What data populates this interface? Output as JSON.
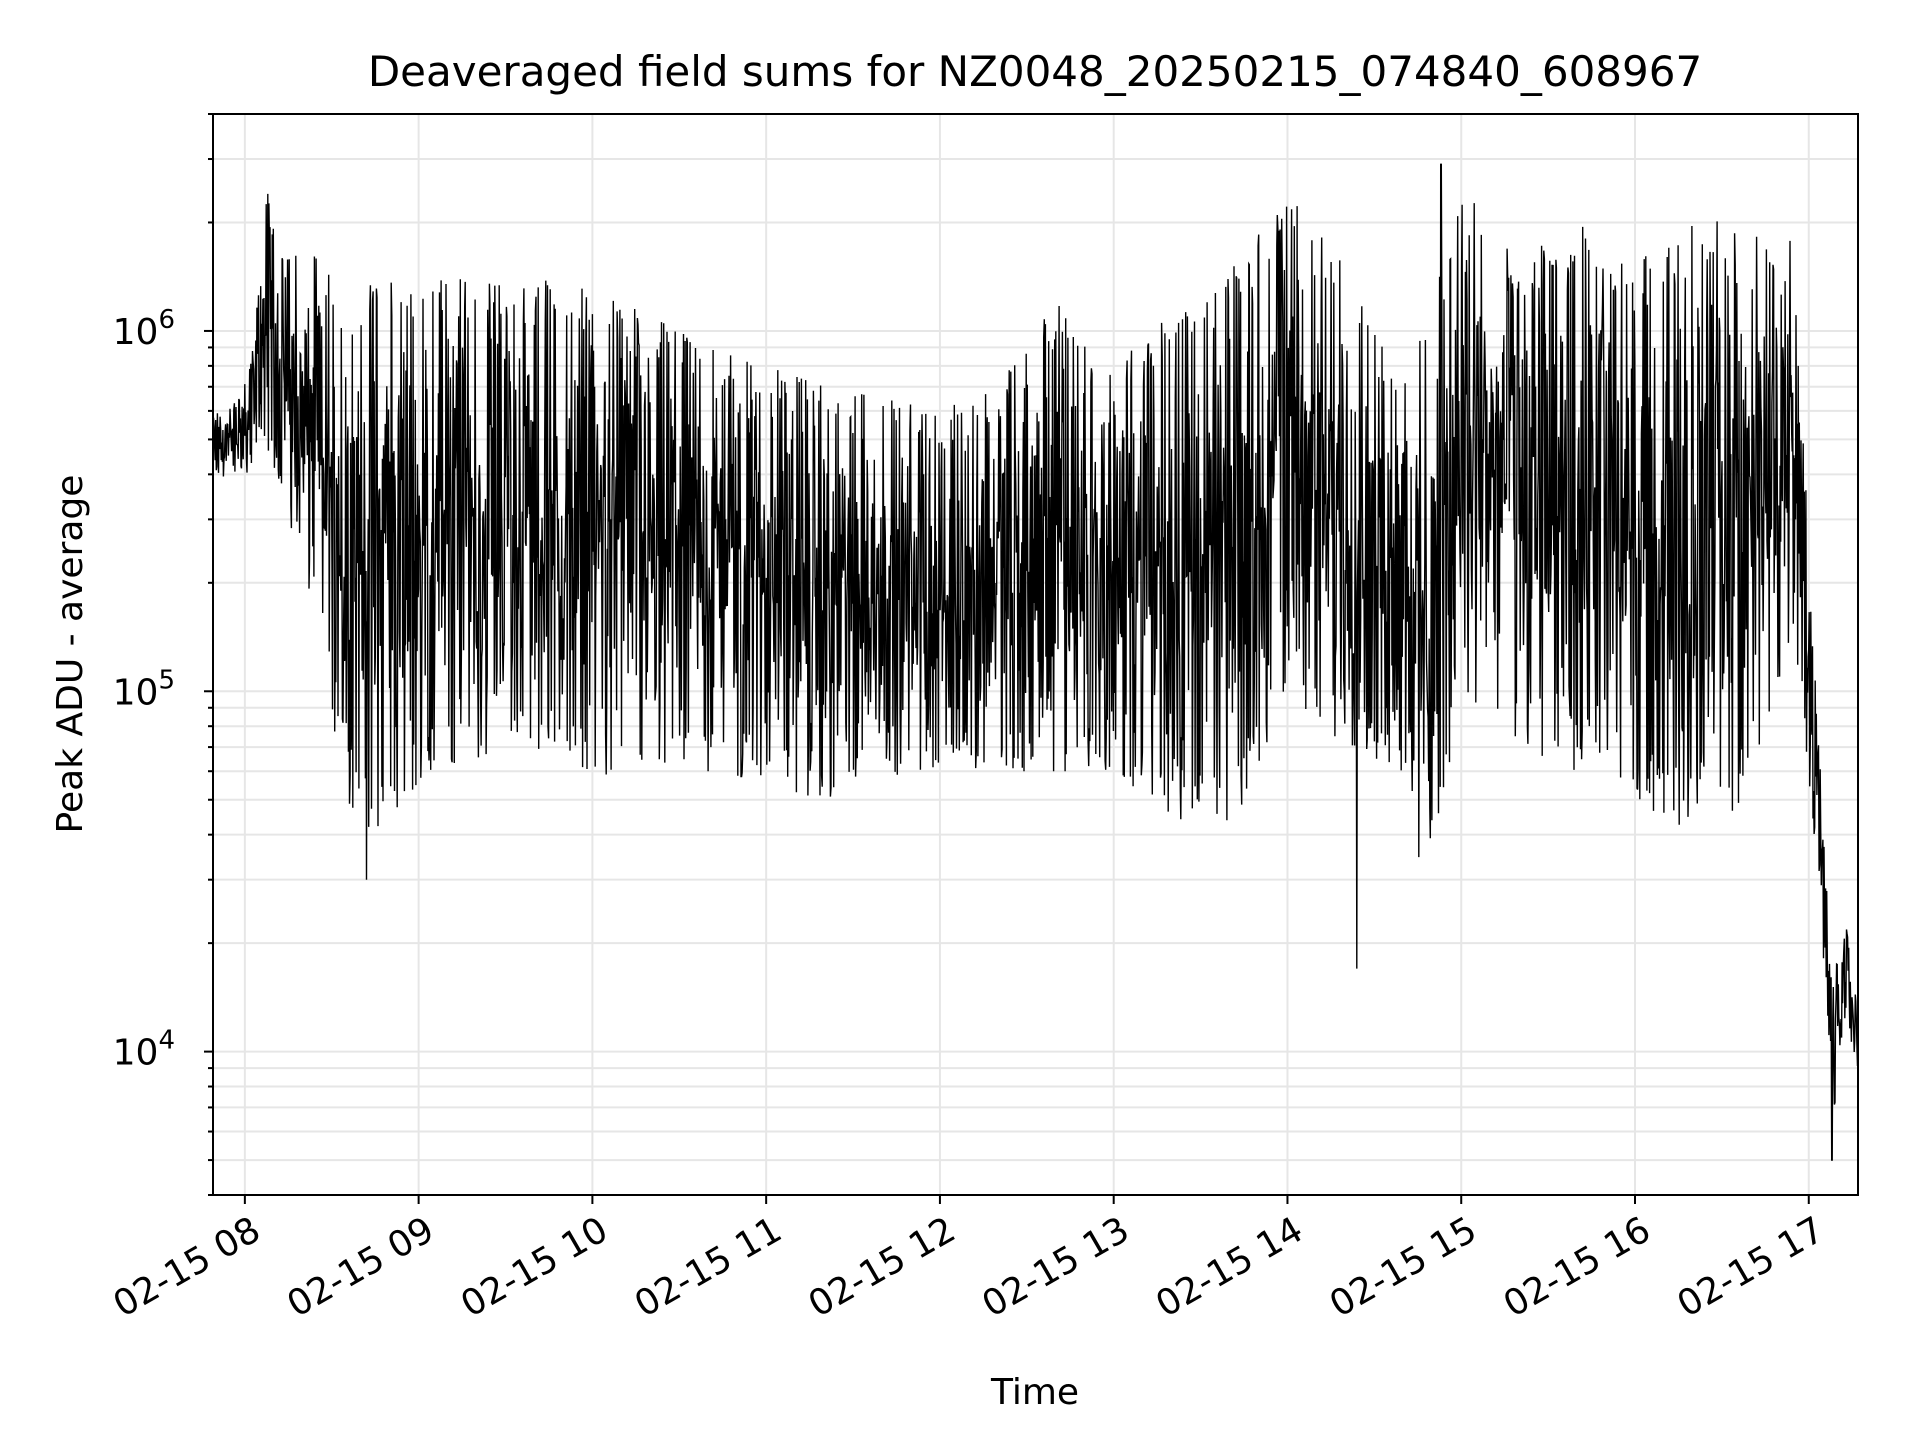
{
  "chart_data": {
    "type": "line",
    "title": "Deaveraged field sums for NZ0048_20250215_074840_608967",
    "xlabel": "Time",
    "ylabel": "Peak ADU - average",
    "yscale": "log",
    "ylim": [
      4000,
      4000000
    ],
    "xlim": [
      "2025-02-15 07:49",
      "2025-02-15 17:17"
    ],
    "grid": true,
    "line_color": "#000000",
    "grid_color": "#e6e6e6",
    "x_tick_labels": [
      "02-15 08",
      "02-15 09",
      "02-15 10",
      "02-15 11",
      "02-15 12",
      "02-15 13",
      "02-15 14",
      "02-15 15",
      "02-15 16",
      "02-15 17"
    ],
    "x_tick_values": [
      "2025-02-15 08:00",
      "2025-02-15 09:00",
      "2025-02-15 10:00",
      "2025-02-15 11:00",
      "2025-02-15 12:00",
      "2025-02-15 13:00",
      "2025-02-15 14:00",
      "2025-02-15 15:00",
      "2025-02-15 16:00",
      "2025-02-15 17:00"
    ],
    "y_tick_values": [
      10000,
      100000,
      1000000
    ],
    "y_tick_labels": [
      {
        "base": "10",
        "exp": "4"
      },
      {
        "base": "10",
        "exp": "5"
      },
      {
        "base": "10",
        "exp": "6"
      }
    ],
    "series": [
      {
        "envelope": [
          {
            "x": "2025-02-15 07:49",
            "low": 350000,
            "high": 600000
          },
          {
            "x": "2025-02-15 07:55",
            "low": 400000,
            "high": 620000
          },
          {
            "x": "2025-02-15 08:02",
            "low": 400000,
            "high": 800000
          },
          {
            "x": "2025-02-15 08:07",
            "low": 500000,
            "high": 2400000
          },
          {
            "x": "2025-02-15 08:15",
            "low": 300000,
            "high": 1700000
          },
          {
            "x": "2025-02-15 08:25",
            "low": 150000,
            "high": 1600000
          },
          {
            "x": "2025-02-15 08:35",
            "low": 50000,
            "high": 1300000
          },
          {
            "x": "2025-02-15 08:45",
            "low": 40000,
            "high": 1400000
          },
          {
            "x": "2025-02-15 09:00",
            "low": 55000,
            "high": 1500000
          },
          {
            "x": "2025-02-15 09:20",
            "low": 65000,
            "high": 1500000
          },
          {
            "x": "2025-02-15 09:40",
            "low": 70000,
            "high": 1400000
          },
          {
            "x": "2025-02-15 10:00",
            "low": 60000,
            "high": 1300000
          },
          {
            "x": "2025-02-15 10:20",
            "low": 55000,
            "high": 1100000
          },
          {
            "x": "2025-02-15 10:40",
            "low": 60000,
            "high": 900000
          },
          {
            "x": "2025-02-15 11:00",
            "low": 55000,
            "high": 800000
          },
          {
            "x": "2025-02-15 11:20",
            "low": 50000,
            "high": 700000
          },
          {
            "x": "2025-02-15 11:40",
            "low": 60000,
            "high": 650000
          },
          {
            "x": "2025-02-15 12:00",
            "low": 55000,
            "high": 600000
          },
          {
            "x": "2025-02-15 12:20",
            "low": 60000,
            "high": 700000
          },
          {
            "x": "2025-02-15 12:40",
            "low": 60000,
            "high": 1200000
          },
          {
            "x": "2025-02-15 13:00",
            "low": 60000,
            "high": 800000
          },
          {
            "x": "2025-02-15 13:20",
            "low": 45000,
            "high": 1200000
          },
          {
            "x": "2025-02-15 13:40",
            "low": 40000,
            "high": 1500000
          },
          {
            "x": "2025-02-15 14:00",
            "low": 100000,
            "high": 2400000
          },
          {
            "x": "2025-02-15 14:20",
            "low": 70000,
            "high": 1500000
          },
          {
            "x": "2025-02-15 14:40",
            "low": 60000,
            "high": 800000
          },
          {
            "x": "2025-02-15 14:48",
            "low": 25000,
            "high": 1000000
          },
          {
            "x": "2025-02-15 15:00",
            "low": 100000,
            "high": 2500000
          },
          {
            "x": "2025-02-15 15:20",
            "low": 70000,
            "high": 1600000
          },
          {
            "x": "2025-02-15 15:40",
            "low": 60000,
            "high": 2000000
          },
          {
            "x": "2025-02-15 16:00",
            "low": 50000,
            "high": 1500000
          },
          {
            "x": "2025-02-15 16:20",
            "low": 40000,
            "high": 2200000
          },
          {
            "x": "2025-02-15 16:40",
            "low": 50000,
            "high": 1800000
          },
          {
            "x": "2025-02-15 16:55",
            "low": 150000,
            "high": 2000000
          },
          {
            "x": "2025-02-15 17:03",
            "low": 30000,
            "high": 80000
          },
          {
            "x": "2025-02-15 17:08",
            "low": 6000,
            "high": 20000
          },
          {
            "x": "2025-02-15 17:13",
            "low": 12000,
            "high": 22000
          },
          {
            "x": "2025-02-15 17:17",
            "low": 9000,
            "high": 13000
          }
        ],
        "notable_points": [
          {
            "x": "2025-02-15 08:08",
            "y": 2400000
          },
          {
            "x": "2025-02-15 08:42",
            "y": 30000
          },
          {
            "x": "2025-02-15 14:24",
            "y": 17000
          },
          {
            "x": "2025-02-15 14:53",
            "y": 2900000
          },
          {
            "x": "2025-02-15 17:08",
            "y": 5000
          }
        ]
      }
    ]
  }
}
